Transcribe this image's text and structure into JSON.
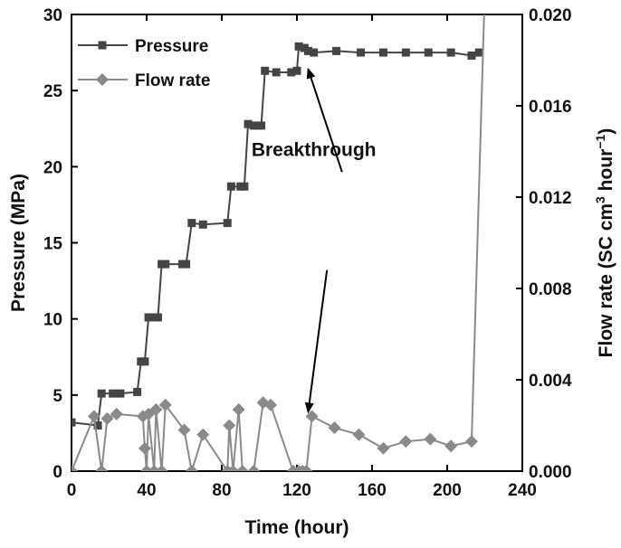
{
  "chart_data": {
    "type": "line",
    "title": "",
    "xlabel": "Time (hour)",
    "ylabel_left": "Pressure (MPa)",
    "ylabel_right_parts": [
      "Flow rate (SC cm",
      "3",
      " hour",
      "−1",
      ")"
    ],
    "xlim": [
      0,
      240
    ],
    "ylim_left": [
      0,
      30
    ],
    "ylim_right": [
      0,
      0.02
    ],
    "x_ticks": [
      0,
      40,
      80,
      120,
      160,
      200,
      240
    ],
    "x_tick_labels": [
      "0",
      "40",
      "80",
      "120",
      "160",
      "200",
      "240"
    ],
    "y_left_ticks": [
      0,
      5,
      10,
      15,
      20,
      25,
      30
    ],
    "y_left_tick_labels": [
      "0",
      "5",
      "10",
      "15",
      "20",
      "25",
      "30"
    ],
    "y_right_ticks": [
      0,
      0.004,
      0.008,
      0.012,
      0.016,
      0.02
    ],
    "y_right_tick_labels": [
      "0.000",
      "0.004",
      "0.008",
      "0.012",
      "0.016",
      "0.020"
    ],
    "legend_position": "top-left",
    "grid": false,
    "series": [
      {
        "name": "Pressure",
        "axis": "left",
        "marker": "square",
        "color": "#444444",
        "points": [
          [
            0,
            3.2
          ],
          [
            14,
            3.0
          ],
          [
            16,
            5.1
          ],
          [
            22,
            5.1
          ],
          [
            26,
            5.1
          ],
          [
            35,
            5.2
          ],
          [
            37,
            7.2
          ],
          [
            39,
            7.2
          ],
          [
            41,
            10.1
          ],
          [
            43,
            10.1
          ],
          [
            46,
            10.1
          ],
          [
            48,
            13.6
          ],
          [
            50,
            13.6
          ],
          [
            59,
            13.6
          ],
          [
            61,
            13.6
          ],
          [
            64,
            16.3
          ],
          [
            70,
            16.2
          ],
          [
            83,
            16.3
          ],
          [
            85,
            18.7
          ],
          [
            90,
            18.7
          ],
          [
            92,
            18.7
          ],
          [
            94,
            22.8
          ],
          [
            97,
            22.7
          ],
          [
            101,
            22.7
          ],
          [
            103,
            26.3
          ],
          [
            109,
            26.2
          ],
          [
            117,
            26.2
          ],
          [
            120,
            26.3
          ],
          [
            121,
            27.9
          ],
          [
            124,
            27.8
          ],
          [
            126,
            27.6
          ],
          [
            129,
            27.5
          ],
          [
            141,
            27.6
          ],
          [
            154,
            27.5
          ],
          [
            166,
            27.5
          ],
          [
            178,
            27.5
          ],
          [
            190,
            27.5
          ],
          [
            202,
            27.5
          ],
          [
            213,
            27.3
          ],
          [
            217,
            27.5
          ]
        ]
      },
      {
        "name": "Flow rate",
        "axis": "right",
        "marker": "diamond",
        "color": "#8a8a8a",
        "points": [
          [
            0,
            0.0
          ],
          [
            12,
            0.0024
          ],
          [
            16,
            0.0
          ],
          [
            19,
            0.0023
          ],
          [
            24,
            0.0025
          ],
          [
            38,
            0.0024
          ],
          [
            39,
            0.001
          ],
          [
            40,
            0.0
          ],
          [
            41,
            0.0025
          ],
          [
            44,
            0.0
          ],
          [
            45,
            0.0027
          ],
          [
            48,
            0.0
          ],
          [
            50,
            0.0029
          ],
          [
            60,
            0.0018
          ],
          [
            64,
            0.0
          ],
          [
            70,
            0.0016
          ],
          [
            83,
            0.0
          ],
          [
            84,
            0.002
          ],
          [
            86,
            0.0
          ],
          [
            89,
            0.0027
          ],
          [
            91,
            0.0
          ],
          [
            97,
            0.0
          ],
          [
            102,
            0.003
          ],
          [
            106,
            0.0029
          ],
          [
            118,
            0.0
          ],
          [
            121,
            0.0
          ],
          [
            123,
            0.0
          ],
          [
            125,
            0.0
          ],
          [
            128,
            0.0024
          ],
          [
            140,
            0.0019
          ],
          [
            153,
            0.0016
          ],
          [
            166,
            0.001
          ],
          [
            178,
            0.0013
          ],
          [
            191,
            0.0014
          ],
          [
            202,
            0.0011
          ],
          [
            213,
            0.0013
          ],
          [
            220,
            0.021
          ]
        ]
      }
    ],
    "annotations": [
      {
        "text": "Breakthrough",
        "anchor": [
          129,
          0.0138
        ],
        "arrows": [
          {
            "tail": [
              144,
              0.0131
            ],
            "head": [
              126,
              0.0176
            ]
          },
          {
            "tail": [
              136,
              0.0088
            ],
            "head": [
              126,
              0.0026
            ]
          }
        ]
      }
    ]
  }
}
